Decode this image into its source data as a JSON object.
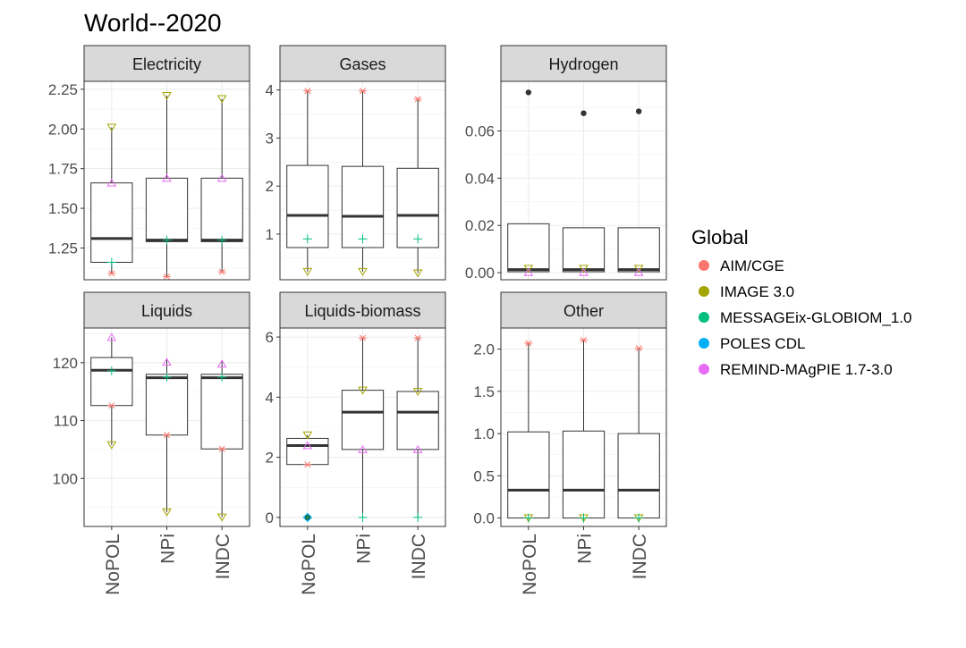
{
  "title": "World--2020",
  "legend": {
    "title": "Global",
    "items": [
      {
        "label": "AIM/CGE",
        "color": "#F8766D",
        "symbol": "asterisk"
      },
      {
        "label": "IMAGE 3.0",
        "color": "#A3A500",
        "symbol": "triangle-down"
      },
      {
        "label": "MESSAGEix-GLOBIOM_1.0",
        "color": "#00BF7D",
        "symbol": "plus"
      },
      {
        "label": "POLES CDL",
        "color": "#00B0F6",
        "symbol": "diamond"
      },
      {
        "label": "REMIND-MAgPIE 1.7-3.0",
        "color": "#E76BF3",
        "symbol": "triangle-up"
      }
    ]
  },
  "chart_data": [
    {
      "type": "box",
      "title": "Electricity",
      "categories": [
        "NoPOL",
        "NPi",
        "INDC"
      ],
      "ylim": [
        1.05,
        2.3
      ],
      "yticks": [
        1.25,
        1.5,
        1.75,
        2.0,
        2.25
      ],
      "tick_labels": [
        "1.25",
        "1.50",
        "1.75",
        "2.00",
        "2.25"
      ],
      "boxes": [
        {
          "q1": 1.16,
          "median": 1.31,
          "q3": 1.66,
          "lower": 1.09,
          "upper": 2.01
        },
        {
          "q1": 1.29,
          "median": 1.3,
          "q3": 1.69,
          "lower": 1.07,
          "upper": 2.21
        },
        {
          "q1": 1.29,
          "median": 1.3,
          "q3": 1.69,
          "lower": 1.1,
          "upper": 2.19
        }
      ],
      "outliers": [],
      "points": [
        {
          "model": "AIM/CGE",
          "values": [
            1.09,
            1.07,
            1.1
          ]
        },
        {
          "model": "IMAGE 3.0",
          "values": [
            2.01,
            2.21,
            2.19
          ]
        },
        {
          "model": "MESSAGEix-GLOBIOM_1.0",
          "values": [
            1.16,
            1.3,
            1.3
          ]
        },
        {
          "model": "REMIND-MAgPIE 1.7-3.0",
          "values": [
            1.66,
            1.69,
            1.69
          ]
        }
      ]
    },
    {
      "type": "box",
      "title": "Gases",
      "categories": [
        "NoPOL",
        "NPi",
        "INDC"
      ],
      "ylim": [
        0.05,
        4.18
      ],
      "yticks": [
        1,
        2,
        3,
        4
      ],
      "tick_labels": [
        "1",
        "2",
        "3",
        "4"
      ],
      "boxes": [
        {
          "q1": 0.72,
          "median": 1.39,
          "q3": 2.43,
          "lower": 0.22,
          "upper": 3.98
        },
        {
          "q1": 0.72,
          "median": 1.37,
          "q3": 2.41,
          "lower": 0.22,
          "upper": 3.98
        },
        {
          "q1": 0.72,
          "median": 1.39,
          "q3": 2.37,
          "lower": 0.19,
          "upper": 3.81
        }
      ],
      "outliers": [],
      "points": [
        {
          "model": "AIM/CGE",
          "values": [
            3.98,
            3.98,
            3.81
          ]
        },
        {
          "model": "IMAGE 3.0",
          "values": [
            0.22,
            0.22,
            0.19
          ]
        },
        {
          "model": "MESSAGEix-GLOBIOM_1.0",
          "values": [
            0.9,
            0.9,
            0.9
          ]
        }
      ]
    },
    {
      "type": "box",
      "title": "Hydrogen",
      "categories": [
        "NoPOL",
        "NPi",
        "INDC"
      ],
      "ylim": [
        -0.003,
        0.081
      ],
      "yticks": [
        0.0,
        0.02,
        0.04,
        0.06
      ],
      "tick_labels": [
        "0.00",
        "0.02",
        "0.04",
        "0.06"
      ],
      "boxes": [
        {
          "q1": 0.0004,
          "median": 0.0013,
          "q3": 0.0207,
          "lower": 0.0,
          "upper": 0.0207
        },
        {
          "q1": 0.0004,
          "median": 0.0013,
          "q3": 0.019,
          "lower": 0.0,
          "upper": 0.019
        },
        {
          "q1": 0.0004,
          "median": 0.0013,
          "q3": 0.019,
          "lower": 0.0,
          "upper": 0.019
        }
      ],
      "outliers": [
        0.0763,
        0.0675,
        0.0683
      ],
      "points": [
        {
          "model": "IMAGE 3.0",
          "values": [
            0.0018,
            0.0018,
            0.0018
          ]
        },
        {
          "model": "REMIND-MAgPIE 1.7-3.0",
          "values": [
            0.0001,
            0.0001,
            0.0001
          ]
        }
      ]
    },
    {
      "type": "box",
      "title": "Liquids",
      "categories": [
        "NoPOL",
        "NPi",
        "INDC"
      ],
      "ylim": [
        91.7,
        126.0
      ],
      "yticks": [
        100,
        110,
        120
      ],
      "tick_labels": [
        "100",
        "110",
        "120"
      ],
      "boxes": [
        {
          "q1": 112.6,
          "median": 118.7,
          "q3": 120.9,
          "lower": 105.8,
          "upper": 124.4
        },
        {
          "q1": 107.5,
          "median": 117.4,
          "q3": 118.0,
          "lower": 94.2,
          "upper": 120.6
        },
        {
          "q1": 105.1,
          "median": 117.4,
          "q3": 118.0,
          "lower": 93.3,
          "upper": 120.3
        }
      ],
      "outliers": [],
      "points": [
        {
          "model": "AIM/CGE",
          "values": [
            112.6,
            107.5,
            105.1
          ]
        },
        {
          "model": "IMAGE 3.0",
          "values": [
            105.8,
            94.2,
            93.3
          ]
        },
        {
          "model": "MESSAGEix-GLOBIOM_1.0",
          "values": [
            118.6,
            117.5,
            117.5
          ]
        },
        {
          "model": "REMIND-MAgPIE 1.7-3.0",
          "values": [
            124.4,
            120.1,
            119.8
          ]
        }
      ]
    },
    {
      "type": "box",
      "title": "Liquids-biomass",
      "categories": [
        "NoPOL",
        "NPi",
        "INDC"
      ],
      "ylim": [
        -0.3,
        6.3
      ],
      "yticks": [
        0,
        2,
        4,
        6
      ],
      "tick_labels": [
        "0",
        "2",
        "4",
        "6"
      ],
      "boxes": [
        {
          "q1": 1.76,
          "median": 2.39,
          "q3": 2.63,
          "lower": 1.76,
          "upper": 2.74
        },
        {
          "q1": 2.26,
          "median": 3.5,
          "q3": 4.23,
          "lower": 0.0,
          "upper": 5.97
        },
        {
          "q1": 2.26,
          "median": 3.5,
          "q3": 4.19,
          "lower": 0.0,
          "upper": 5.97
        }
      ],
      "outliers": [
        0.0
      ],
      "points": [
        {
          "model": "AIM/CGE",
          "values": [
            1.76,
            5.97,
            5.97
          ]
        },
        {
          "model": "IMAGE 3.0",
          "values": [
            2.74,
            4.23,
            4.19
          ]
        },
        {
          "model": "MESSAGEix-GLOBIOM_1.0",
          "values": [
            0.0,
            0.0,
            0.0
          ]
        },
        {
          "model": "POLES CDL",
          "values": [
            0.0,
            null,
            null
          ]
        },
        {
          "model": "REMIND-MAgPIE 1.7-3.0",
          "values": [
            2.39,
            2.26,
            2.26
          ]
        }
      ]
    },
    {
      "type": "box",
      "title": "Other",
      "categories": [
        "NoPOL",
        "NPi",
        "INDC"
      ],
      "ylim": [
        -0.1,
        2.25
      ],
      "yticks": [
        0.0,
        0.5,
        1.0,
        1.5,
        2.0
      ],
      "tick_labels": [
        "0.0",
        "0.5",
        "1.0",
        "1.5",
        "2.0"
      ],
      "boxes": [
        {
          "q1": 0.0,
          "median": 0.33,
          "q3": 1.02,
          "lower": 0.0,
          "upper": 2.07
        },
        {
          "q1": 0.0,
          "median": 0.33,
          "q3": 1.03,
          "lower": 0.0,
          "upper": 2.11
        },
        {
          "q1": 0.0,
          "median": 0.33,
          "q3": 1.0,
          "lower": 0.0,
          "upper": 2.01
        }
      ],
      "outliers": [],
      "points": [
        {
          "model": "AIM/CGE",
          "values": [
            2.07,
            2.11,
            2.01
          ]
        },
        {
          "model": "IMAGE 3.0",
          "values": [
            0.0,
            0.0,
            0.0
          ]
        },
        {
          "model": "MESSAGEix-GLOBIOM_1.0",
          "values": [
            0.0,
            0.0,
            0.0
          ]
        }
      ]
    }
  ]
}
